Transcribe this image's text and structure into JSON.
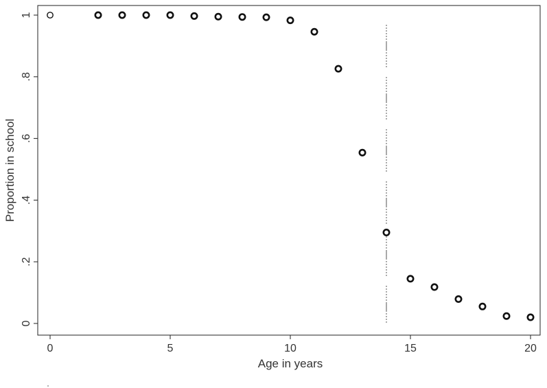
{
  "chart_data": {
    "type": "scatter",
    "title": "",
    "xlabel": "Age in years",
    "ylabel": "Proportion in school",
    "xlim": [
      0,
      20
    ],
    "ylim": [
      0,
      1
    ],
    "x_ticks": [
      0,
      5,
      10,
      15,
      20
    ],
    "x_tick_labels": [
      "0",
      "5",
      "10",
      "15",
      "20"
    ],
    "y_ticks": [
      0,
      0.2,
      0.4,
      0.6,
      0.8,
      1
    ],
    "y_tick_labels": [
      "0",
      ".2",
      ".4",
      ".6",
      ".8",
      "1"
    ],
    "grid": false,
    "legend": "none",
    "reference_line": {
      "x": 14,
      "style": "dashed",
      "color": "#aaaaaa"
    },
    "marker_color": "#111111",
    "points": [
      {
        "x": 0,
        "y": 1.0
      },
      {
        "x": 2,
        "y": 1.0
      },
      {
        "x": 3,
        "y": 1.0
      },
      {
        "x": 4,
        "y": 1.0
      },
      {
        "x": 5,
        "y": 1.0
      },
      {
        "x": 6,
        "y": 0.997
      },
      {
        "x": 7,
        "y": 0.995
      },
      {
        "x": 8,
        "y": 0.994
      },
      {
        "x": 9,
        "y": 0.993
      },
      {
        "x": 10,
        "y": 0.983
      },
      {
        "x": 11,
        "y": 0.946
      },
      {
        "x": 12,
        "y": 0.826
      },
      {
        "x": 13,
        "y": 0.554
      },
      {
        "x": 14,
        "y": 0.295
      },
      {
        "x": 15,
        "y": 0.145
      },
      {
        "x": 16,
        "y": 0.118
      },
      {
        "x": 17,
        "y": 0.079
      },
      {
        "x": 18,
        "y": 0.055
      },
      {
        "x": 19,
        "y": 0.024
      },
      {
        "x": 20,
        "y": 0.02
      }
    ]
  }
}
